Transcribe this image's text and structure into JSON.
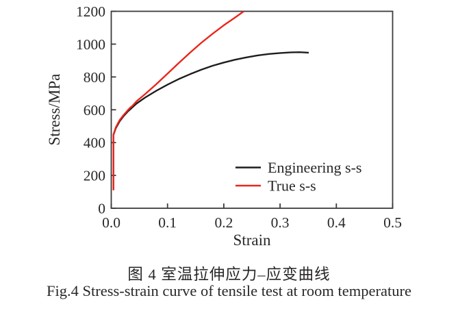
{
  "figure": {
    "caption_zh": "图 4  室温拉伸应力–应变曲线",
    "caption_en": "Fig.4  Stress-strain curve of tensile test at room temperature"
  },
  "chart_data": {
    "type": "line",
    "title": "",
    "xlabel": "Strain",
    "ylabel": "Stress/MPa",
    "xlim": [
      0.0,
      0.5
    ],
    "ylim": [
      0,
      1200
    ],
    "x_ticks": [
      "0.0",
      "0.1",
      "0.2",
      "0.3",
      "0.4",
      "0.5"
    ],
    "y_ticks": [
      "0",
      "200",
      "400",
      "600",
      "800",
      "1000",
      "1200"
    ],
    "grid": false,
    "legend_position": "inside lower right",
    "series": [
      {
        "name": "Engineering s-s",
        "color": "#1f1c1c",
        "points": [
          [
            0.004,
            110
          ],
          [
            0.004,
            448
          ],
          [
            0.008,
            487
          ],
          [
            0.015,
            530
          ],
          [
            0.022,
            562
          ],
          [
            0.03,
            592
          ],
          [
            0.034,
            603
          ],
          [
            0.037,
            613
          ],
          [
            0.045,
            638
          ],
          [
            0.06,
            674
          ],
          [
            0.08,
            716
          ],
          [
            0.1,
            753
          ],
          [
            0.12,
            787
          ],
          [
            0.14,
            817
          ],
          [
            0.16,
            844
          ],
          [
            0.18,
            868
          ],
          [
            0.2,
            888
          ],
          [
            0.22,
            905
          ],
          [
            0.24,
            919
          ],
          [
            0.26,
            931
          ],
          [
            0.28,
            940
          ],
          [
            0.3,
            946
          ],
          [
            0.32,
            950
          ],
          [
            0.335,
            951
          ],
          [
            0.351,
            948
          ]
        ]
      },
      {
        "name": "True s-s",
        "color": "#ea251c",
        "points": [
          [
            0.004,
            110
          ],
          [
            0.004,
            450
          ],
          [
            0.008,
            492
          ],
          [
            0.015,
            537
          ],
          [
            0.022,
            568
          ],
          [
            0.03,
            600
          ],
          [
            0.034,
            614
          ],
          [
            0.037,
            622
          ],
          [
            0.045,
            652
          ],
          [
            0.06,
            695
          ],
          [
            0.08,
            756
          ],
          [
            0.1,
            820
          ],
          [
            0.12,
            885
          ],
          [
            0.14,
            948
          ],
          [
            0.16,
            1008
          ],
          [
            0.18,
            1063
          ],
          [
            0.2,
            1115
          ],
          [
            0.22,
            1162
          ],
          [
            0.2355,
            1200
          ]
        ]
      }
    ]
  },
  "colors": {
    "axis": "#3d3a3a",
    "text": "#2a2626",
    "background": "#ffffff"
  }
}
